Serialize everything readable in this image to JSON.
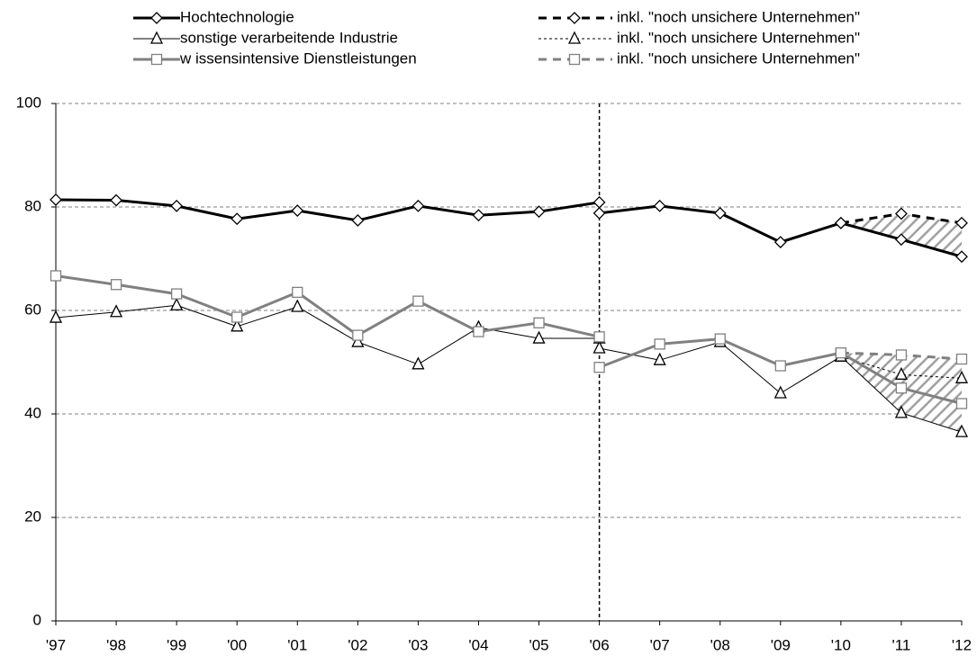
{
  "chart_data": {
    "type": "line",
    "categories": [
      "'97",
      "'98",
      "'99",
      "'00",
      "'01",
      "'02",
      "'03",
      "'04",
      "'05",
      "'06",
      "'07",
      "'08",
      "'09",
      "'10",
      "'11",
      "'12"
    ],
    "ylim": [
      0,
      100
    ],
    "yticks": [
      0,
      20,
      40,
      60,
      80,
      100
    ],
    "grid": true,
    "series": [
      {
        "name": "Hochtechnologie",
        "color": "#000000",
        "width": 3,
        "marker": "diamond",
        "values": [
          81.4,
          81.3,
          80.2,
          77.7,
          79.3,
          77.4,
          80.2,
          78.4,
          79.1,
          80.9,
          null,
          null,
          null,
          null,
          null,
          null
        ],
        "values_new": [
          null,
          null,
          null,
          null,
          null,
          null,
          null,
          null,
          null,
          78.8,
          80.2,
          78.8,
          73.2,
          76.9,
          73.7,
          70.4
        ]
      },
      {
        "name": "sonstige verarbeitende Industrie",
        "color": "#000000",
        "width": 1,
        "marker": "triangle",
        "values": [
          58.6,
          59.7,
          61.0,
          56.9,
          60.7,
          53.9,
          49.6,
          56.7,
          54.6,
          54.6,
          null,
          null,
          null,
          null,
          null,
          null
        ],
        "values_new": [
          null,
          null,
          null,
          null,
          null,
          null,
          null,
          null,
          null,
          52.7,
          50.4,
          53.9,
          44.0,
          51.1,
          40.2,
          36.5
        ]
      },
      {
        "name": "w issensintensive Dienstleistungen",
        "color": "#808080",
        "width": 3,
        "marker": "square",
        "values": [
          66.7,
          65.0,
          63.2,
          58.7,
          63.5,
          55.2,
          61.8,
          55.9,
          57.6,
          54.9,
          null,
          null,
          null,
          null,
          null,
          null
        ],
        "values_new": [
          null,
          null,
          null,
          null,
          null,
          null,
          null,
          null,
          null,
          49.0,
          53.5,
          54.5,
          49.3,
          51.8,
          45.0,
          42.0
        ]
      },
      {
        "name": "inkl. \"noch unsichere Unternehmen\"",
        "color": "#000000",
        "width": 3,
        "marker": "diamond",
        "line_style": "dashed",
        "values": [
          null,
          null,
          null,
          null,
          null,
          null,
          null,
          null,
          null,
          null,
          null,
          null,
          null,
          76.9,
          78.7,
          76.9
        ]
      },
      {
        "name": "inkl. \"noch unsichere Unternehmen\"",
        "color": "#000000",
        "width": 1,
        "marker": "triangle",
        "line_style": "dotted",
        "values": [
          null,
          null,
          null,
          null,
          null,
          null,
          null,
          null,
          null,
          null,
          null,
          null,
          null,
          51.1,
          47.6,
          46.9
        ]
      },
      {
        "name": "inkl. \"noch unsichere Unternehmen\"",
        "color": "#808080",
        "width": 3,
        "marker": "square",
        "line_style": "dashed",
        "values": [
          null,
          null,
          null,
          null,
          null,
          null,
          null,
          null,
          null,
          null,
          null,
          null,
          null,
          51.8,
          51.4,
          50.6
        ]
      }
    ]
  }
}
